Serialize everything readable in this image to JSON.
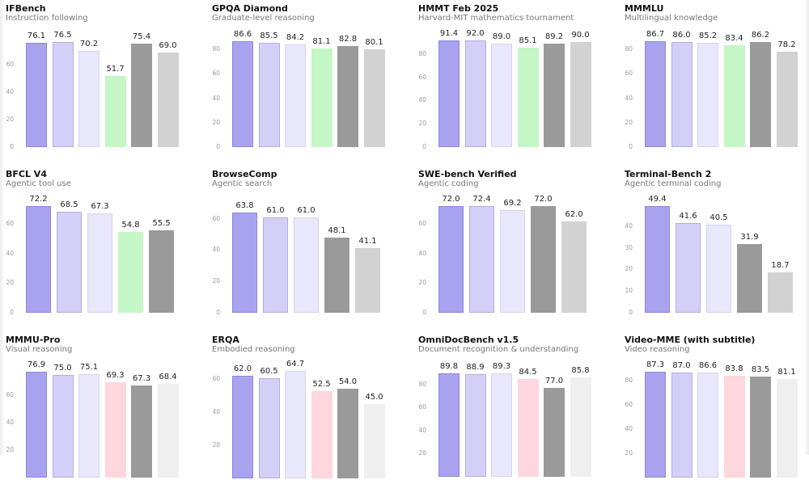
{
  "palette": {
    "series_colors": [
      "#a9a2ee",
      "#d3cff6",
      "#e9e7fc",
      "#c4f6c6",
      "#9a9a9a",
      "#d2d2d2"
    ],
    "series_colors_row3": [
      "#a9a2ee",
      "#d3cff6",
      "#e9e7fc",
      "#fdd6de",
      "#9a9a9a",
      "#efefef"
    ],
    "border_colors": [
      "#8f87de",
      "#b3aee3",
      "#d6d3ef",
      "#c4f6c6",
      "#9a9a9a",
      "#d2d2d2"
    ]
  },
  "chart_data": [
    {
      "type": "bar",
      "title": "IFBench",
      "subtitle": "Instruction following",
      "values": [
        76.1,
        76.5,
        70.2,
        51.7,
        75.4,
        69.0
      ],
      "labels": [
        "76.1",
        "76.5",
        "70.2",
        "51.7",
        "75.4",
        "69.0"
      ],
      "colors": [
        "#a9a2ee",
        "#d3cff6",
        "#e9e7fc",
        "#c4f6c6",
        "#9a9a9a",
        "#d2d2d2"
      ],
      "yticks": [
        "0",
        "20",
        "40",
        "60"
      ],
      "ytick_values": [
        0,
        20,
        40,
        60
      ],
      "ylim": [
        0,
        80
      ]
    },
    {
      "type": "bar",
      "title": "GPQA Diamond",
      "subtitle": "Graduate-level reasoning",
      "values": [
        86.6,
        85.5,
        84.2,
        81.1,
        82.8,
        80.1
      ],
      "labels": [
        "86.6",
        "85.5",
        "84.2",
        "81.1",
        "82.8",
        "80.1"
      ],
      "colors": [
        "#a9a2ee",
        "#d3cff6",
        "#e9e7fc",
        "#c4f6c6",
        "#9a9a9a",
        "#d2d2d2"
      ],
      "yticks": [
        "0",
        "20",
        "40",
        "60",
        "80"
      ],
      "ytick_values": [
        0,
        20,
        40,
        60,
        80
      ],
      "ylim": [
        0,
        92
      ]
    },
    {
      "type": "bar",
      "title": "HMMT Feb 2025",
      "subtitle": "Harvard-MIT mathematics tournament",
      "values": [
        91.4,
        92.0,
        89.0,
        85.1,
        89.2,
        90.0
      ],
      "labels": [
        "91.4",
        "92.0",
        "89.0",
        "85.1",
        "89.2",
        "90.0"
      ],
      "colors": [
        "#a9a2ee",
        "#d3cff6",
        "#e9e7fc",
        "#c4f6c6",
        "#9a9a9a",
        "#d2d2d2"
      ],
      "yticks": [
        "0",
        "20",
        "40",
        "60",
        "80"
      ],
      "ytick_values": [
        0,
        20,
        40,
        60,
        80
      ],
      "ylim": [
        0,
        98
      ]
    },
    {
      "type": "bar",
      "title": "MMMLU",
      "subtitle": "Multilingual knowledge",
      "values": [
        86.7,
        86.0,
        85.2,
        83.4,
        86.2,
        78.2
      ],
      "labels": [
        "86.7",
        "86.0",
        "85.2",
        "83.4",
        "86.2",
        "78.2"
      ],
      "colors": [
        "#a9a2ee",
        "#d3cff6",
        "#e9e7fc",
        "#c4f6c6",
        "#9a9a9a",
        "#d2d2d2"
      ],
      "yticks": [
        "0",
        "20",
        "40",
        "60",
        "80"
      ],
      "ytick_values": [
        0,
        20,
        40,
        60,
        80
      ],
      "ylim": [
        0,
        92
      ]
    },
    {
      "type": "bar",
      "title": "BFCL V4",
      "subtitle": "Agentic tool use",
      "values": [
        72.2,
        68.5,
        67.3,
        54.8,
        55.5
      ],
      "labels": [
        "72.2",
        "68.5",
        "67.3",
        "54.8",
        "55.5"
      ],
      "colors": [
        "#a9a2ee",
        "#d3cff6",
        "#e9e7fc",
        "#c4f6c6",
        "#9a9a9a"
      ],
      "yticks": [
        "0",
        "20",
        "40",
        "60"
      ],
      "ytick_values": [
        0,
        20,
        40,
        60
      ],
      "ylim": [
        0,
        77
      ]
    },
    {
      "type": "bar",
      "title": "BrowseComp",
      "subtitle": "Agentic search",
      "values": [
        63.8,
        61.0,
        61.0,
        48.1,
        41.1
      ],
      "labels": [
        "63.8",
        "61.0",
        "61.0",
        "48.1",
        "41.1"
      ],
      "colors": [
        "#a9a2ee",
        "#d3cff6",
        "#e9e7fc",
        "#9a9a9a",
        "#d2d2d2"
      ],
      "yticks": [
        "0",
        "20",
        "40",
        "60"
      ],
      "ytick_values": [
        0,
        20,
        40,
        60
      ],
      "ylim": [
        0,
        68
      ]
    },
    {
      "type": "bar",
      "title": "SWE-bench Verified",
      "subtitle": "Agentic coding",
      "values": [
        72.0,
        72.4,
        69.2,
        72.0,
        62.0
      ],
      "labels": [
        "72.0",
        "72.4",
        "69.2",
        "72.0",
        "62.0"
      ],
      "colors": [
        "#a9a2ee",
        "#d3cff6",
        "#e9e7fc",
        "#9a9a9a",
        "#d2d2d2"
      ],
      "yticks": [
        "0",
        "20",
        "40",
        "60"
      ],
      "ytick_values": [
        0,
        20,
        40,
        60
      ],
      "ylim": [
        0,
        78
      ]
    },
    {
      "type": "bar",
      "title": "Terminal-Bench 2",
      "subtitle": "Agentic terminal coding",
      "values": [
        49.4,
        41.6,
        40.5,
        31.9,
        18.7
      ],
      "labels": [
        "49.4",
        "41.6",
        "40.5",
        "31.9",
        "18.7"
      ],
      "colors": [
        "#a9a2ee",
        "#d3cff6",
        "#e9e7fc",
        "#9a9a9a",
        "#d2d2d2"
      ],
      "yticks": [
        "0",
        "10",
        "20",
        "30",
        "40"
      ],
      "ytick_values": [
        0,
        10,
        20,
        30,
        40
      ],
      "ylim": [
        0,
        53
      ]
    },
    {
      "type": "bar",
      "title": "MMMU-Pro",
      "subtitle": "Visual reasoning",
      "values": [
        76.9,
        75.0,
        75.1,
        69.3,
        67.3,
        68.4
      ],
      "labels": [
        "76.9",
        "75.0",
        "75.1",
        "69.3",
        "67.3",
        "68.4"
      ],
      "colors": [
        "#a9a2ee",
        "#d3cff6",
        "#e9e7fc",
        "#fdd6de",
        "#9a9a9a",
        "#efefef"
      ],
      "yticks": [
        "20",
        "40",
        "60"
      ],
      "ytick_values": [
        20,
        40,
        60
      ],
      "ylim": [
        0,
        82
      ]
    },
    {
      "type": "bar",
      "title": "ERQA",
      "subtitle": "Embodied reasoning",
      "values": [
        62.0,
        60.5,
        64.7,
        52.5,
        54.0,
        45.0
      ],
      "labels": [
        "62.0",
        "60.5",
        "64.7",
        "52.5",
        "54.0",
        "45.0"
      ],
      "colors": [
        "#a9a2ee",
        "#d3cff6",
        "#e9e7fc",
        "#fdd6de",
        "#9a9a9a",
        "#efefef"
      ],
      "yticks": [
        "20",
        "40",
        "60"
      ],
      "ytick_values": [
        20,
        40,
        60
      ],
      "ylim": [
        0,
        68
      ]
    },
    {
      "type": "bar",
      "title": "OmniDocBench v1.5",
      "subtitle": "Document recognition & understanding",
      "values": [
        89.8,
        88.9,
        89.3,
        84.5,
        77.0,
        85.8
      ],
      "labels": [
        "89.8",
        "88.9",
        "89.3",
        "84.5",
        "77.0",
        "85.8"
      ],
      "colors": [
        "#a9a2ee",
        "#d3cff6",
        "#e9e7fc",
        "#fdd6de",
        "#9a9a9a",
        "#efefef"
      ],
      "yticks": [
        "20",
        "40",
        "60",
        "80"
      ],
      "ytick_values": [
        20,
        40,
        60,
        80
      ],
      "ylim": [
        0,
        96
      ]
    },
    {
      "type": "bar",
      "title": "Video-MME (with subtitle)",
      "subtitle": "Video reasoning",
      "values": [
        87.3,
        87.0,
        86.6,
        83.8,
        83.5,
        81.1
      ],
      "labels": [
        "87.3",
        "87.0",
        "86.6",
        "83.8",
        "83.5",
        "81.1"
      ],
      "colors": [
        "#a9a2ee",
        "#d3cff6",
        "#e9e7fc",
        "#fdd6de",
        "#9a9a9a",
        "#efefef"
      ],
      "yticks": [
        "20",
        "40",
        "60",
        "80"
      ],
      "ytick_values": [
        20,
        40,
        60,
        80
      ],
      "ylim": [
        0,
        93
      ]
    }
  ]
}
